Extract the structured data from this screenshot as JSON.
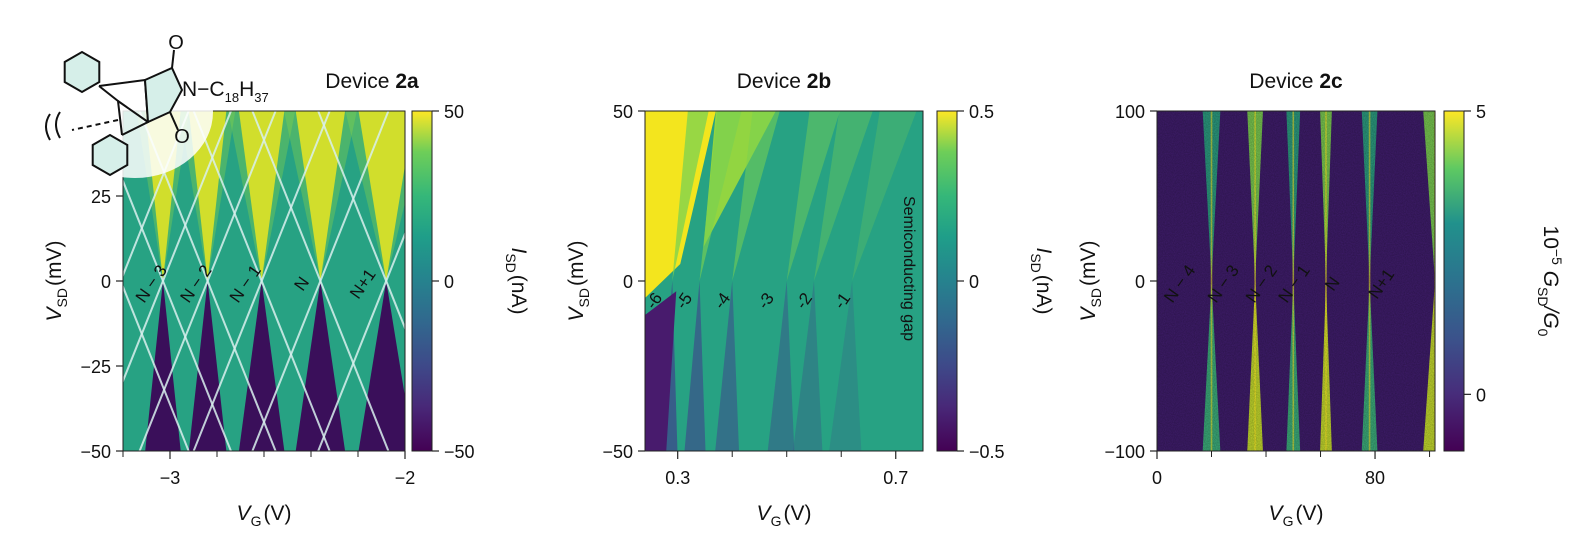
{
  "chart_data": [
    {
      "type": "heatmap",
      "title_prefix": "Device ",
      "title_bold": "2a",
      "xlabel_main": "V",
      "xlabel_sub": "G",
      "xlabel_unit": "(V)",
      "ylabel_main": "V",
      "ylabel_sub": "SD",
      "ylabel_unit": "(mV)",
      "xlim": [
        -3.2,
        -2.0
      ],
      "ylim": [
        -50,
        50
      ],
      "xticks": [
        {
          "v": -3.0,
          "label": "-3"
        },
        {
          "v": -2.0,
          "label": "-2"
        }
      ],
      "xminor": [
        -3.2,
        -2.8,
        -2.6,
        -2.4,
        -2.2
      ],
      "yticks": [
        {
          "v": 25,
          "label": "25"
        },
        {
          "v": 0,
          "label": "0"
        },
        {
          "v": -25,
          "label": "-25"
        },
        {
          "v": -50,
          "label": "-50"
        }
      ],
      "colorbar": {
        "label_main": "I",
        "label_sub": "SD",
        "label_unit": "(nA)",
        "range": [
          -50,
          50
        ],
        "ticks": [
          {
            "v": 50,
            "label": "50"
          },
          {
            "v": 0,
            "label": "0"
          },
          {
            "v": -50,
            "label": "-50"
          }
        ]
      },
      "diamond_centers": [
        -3.21,
        -3.03,
        -2.84,
        -2.61,
        -2.36,
        -2.08
      ],
      "region_labels": [
        {
          "x": -3.06,
          "y": 0,
          "text": "N − 3"
        },
        {
          "x": -2.87,
          "y": 0,
          "text": "N − 2"
        },
        {
          "x": -2.66,
          "y": 0,
          "text": "N − 1"
        },
        {
          "x": -2.42,
          "y": 0,
          "text": "N"
        },
        {
          "x": -2.16,
          "y": 0,
          "text": "N+1"
        }
      ],
      "molecule": {
        "substituent": "N−C",
        "sub1": "18",
        "h": "H",
        "sub2": "37",
        "o1": "O",
        "o2": "O"
      }
    },
    {
      "type": "heatmap",
      "title_prefix": "Device ",
      "title_bold": "2b",
      "xlabel_main": "V",
      "xlabel_sub": "G",
      "xlabel_unit": "(V)",
      "ylabel_main": "V",
      "ylabel_sub": "SD",
      "ylabel_unit": "(mV)",
      "xlim": [
        0.24,
        0.75
      ],
      "ylim": [
        -50,
        50
      ],
      "xticks": [
        {
          "v": 0.3,
          "label": "0.3"
        },
        {
          "v": 0.7,
          "label": "0.7"
        }
      ],
      "xminor": [
        0.4,
        0.5,
        0.6
      ],
      "yticks": [
        {
          "v": 50,
          "label": "50"
        },
        {
          "v": 0,
          "label": "0"
        },
        {
          "v": -50,
          "label": "-50"
        }
      ],
      "colorbar": {
        "label_main": "I",
        "label_sub": "SD",
        "label_unit": "(nA)",
        "range": [
          -0.5,
          0.5
        ],
        "ticks": [
          {
            "v": 0.5,
            "label": "0.5"
          },
          {
            "v": 0,
            "label": "0"
          },
          {
            "v": -0.5,
            "label": "-0.5"
          }
        ]
      },
      "degeneracy_points": [
        0.29,
        0.34,
        0.4,
        0.5,
        0.55,
        0.62
      ],
      "region_labels": [
        {
          "x": 0.265,
          "y": -5,
          "text": "-6"
        },
        {
          "x": 0.32,
          "y": -5,
          "text": "-5"
        },
        {
          "x": 0.39,
          "y": -5,
          "text": "-4"
        },
        {
          "x": 0.47,
          "y": -5,
          "text": "-3"
        },
        {
          "x": 0.54,
          "y": -5,
          "text": "-2"
        },
        {
          "x": 0.61,
          "y": -5,
          "text": "-1"
        }
      ],
      "annotation": "Semiconducting gap"
    },
    {
      "type": "heatmap",
      "title_prefix": "Device ",
      "title_bold": "2c",
      "xlabel_main": "V",
      "xlabel_sub": "G",
      "xlabel_unit": "(V)",
      "ylabel_main": "V",
      "ylabel_sub": "SD",
      "ylabel_unit": "(mV)",
      "xlim": [
        0,
        102
      ],
      "ylim": [
        -100,
        100
      ],
      "xticks": [
        {
          "v": 0,
          "label": "0"
        },
        {
          "v": 80,
          "label": "80"
        }
      ],
      "xminor": [
        20,
        40,
        60,
        100
      ],
      "yticks": [
        {
          "v": 100,
          "label": "100"
        },
        {
          "v": 0,
          "label": "0"
        },
        {
          "v": -100,
          "label": "-100"
        }
      ],
      "colorbar": {
        "label_main": "10",
        "label_sup": "−5",
        "label_rest": " G",
        "label_sub": "SD",
        "label_den": "/G",
        "label_den_sub": "0",
        "range": [
          -1,
          5
        ],
        "ticks": [
          {
            "v": 5,
            "label": "5"
          },
          {
            "v": 0,
            "label": "0"
          }
        ]
      },
      "diamond_centers": [
        2,
        20,
        36,
        50,
        62,
        78,
        102
      ],
      "region_labels": [
        {
          "x": 10,
          "y": 0,
          "text": "N − 4"
        },
        {
          "x": 26,
          "y": 0,
          "text": "N − 3"
        },
        {
          "x": 40,
          "y": 0,
          "text": "N − 2"
        },
        {
          "x": 52,
          "y": 0,
          "text": "N − 1"
        },
        {
          "x": 66,
          "y": 0,
          "text": "N"
        },
        {
          "x": 84,
          "y": 0,
          "text": "N+1"
        }
      ]
    }
  ]
}
